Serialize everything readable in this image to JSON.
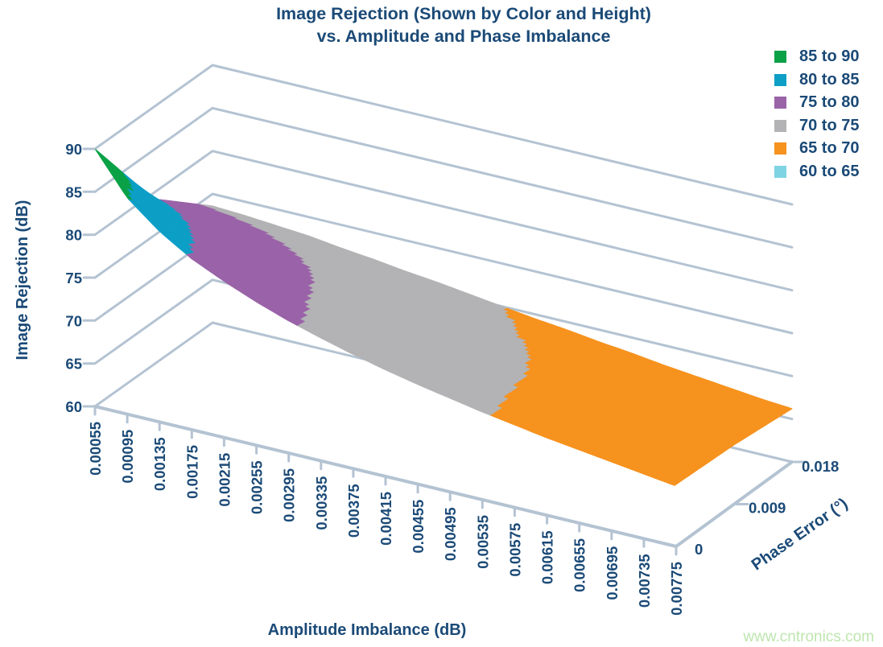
{
  "title": {
    "line1": "Image Rejection (Shown by Color and Height)",
    "line2": "vs. Amplitude and Phase Imbalance"
  },
  "watermark": "www.cntronics.com",
  "chart_data": {
    "type": "surface",
    "title": "Image Rejection (Shown by Color and Height) vs. Amplitude and Phase Imbalance",
    "x_axis": {
      "label": "Amplitude Imbalance (dB)",
      "ticks": [
        "0.00055",
        "0.00095",
        "0.00135",
        "0.00175",
        "0.00215",
        "0.00255",
        "0.00295",
        "0.00335",
        "0.00375",
        "0.00415",
        "0.00455",
        "0.00495",
        "0.00535",
        "0.00575",
        "0.00615",
        "0.00655",
        "0.00695",
        "0.00735",
        "0.00775"
      ]
    },
    "z_axis": {
      "label": "Phase Error (°)",
      "ticks": [
        "0",
        "0.009",
        "0.018"
      ]
    },
    "y_axis": {
      "label": "Image Rejection (dB)",
      "ticks": [
        "90",
        "85",
        "80",
        "75",
        "70",
        "65",
        "60"
      ],
      "range": [
        60,
        90
      ]
    },
    "legend": [
      {
        "label": "85 to 90",
        "color": "#0AA147"
      },
      {
        "label": "80 to 85",
        "color": "#0D9FC6"
      },
      {
        "label": "75 to 80",
        "color": "#9A63A8"
      },
      {
        "label": "70 to 75",
        "color": "#B3B3B5"
      },
      {
        "label": "65 to 70",
        "color": "#F6921E"
      },
      {
        "label": "60 to 65",
        "color": "#7FD4E3"
      }
    ],
    "bands": [
      {
        "min": 85,
        "color": "#0AA147"
      },
      {
        "min": 80,
        "color": "#0D9FC6"
      },
      {
        "min": 75,
        "color": "#9A63A8"
      },
      {
        "min": 70,
        "color": "#B3B3B5"
      },
      {
        "min": 65,
        "color": "#F6921E"
      },
      {
        "min": -999,
        "color": "#7FD4E3"
      }
    ],
    "surface": {
      "amplitude_imbalance_db": [
        0.00055,
        0.00095,
        0.00135,
        0.00175,
        0.00215,
        0.00255,
        0.00295,
        0.00335,
        0.00375,
        0.00415,
        0.00455,
        0.00495,
        0.00535,
        0.00575,
        0.00615,
        0.00655,
        0.00695,
        0.00735,
        0.00775
      ],
      "phase_error_deg": [
        0,
        0.009,
        0.018
      ],
      "image_rejection_db": [
        [
          90.0,
          79.3,
          73.6
        ],
        [
          85.2,
          78.6,
          73.4
        ],
        [
          82.2,
          77.8,
          73.1
        ],
        [
          79.9,
          76.8,
          72.8
        ],
        [
          78.2,
          75.9,
          72.3
        ],
        [
          76.7,
          74.9,
          71.9
        ],
        [
          75.4,
          74.0,
          71.4
        ],
        [
          74.3,
          73.2,
          71.0
        ],
        [
          73.3,
          72.4,
          70.5
        ],
        [
          72.4,
          71.7,
          70.0
        ],
        [
          71.6,
          71.0,
          69.5
        ],
        [
          70.9,
          70.4,
          69.1
        ],
        [
          70.2,
          69.8,
          68.6
        ],
        [
          69.6,
          69.2,
          68.2
        ],
        [
          69.0,
          68.7,
          67.7
        ],
        [
          68.5,
          68.2,
          67.3
        ],
        [
          68.0,
          67.7,
          66.9
        ],
        [
          67.5,
          67.2,
          66.5
        ],
        [
          67.0,
          66.8,
          66.2
        ]
      ]
    },
    "grid": true,
    "legend_position": "top-right",
    "colors": {
      "grid": "#B4C3D2",
      "text": "#1B4A77"
    }
  }
}
